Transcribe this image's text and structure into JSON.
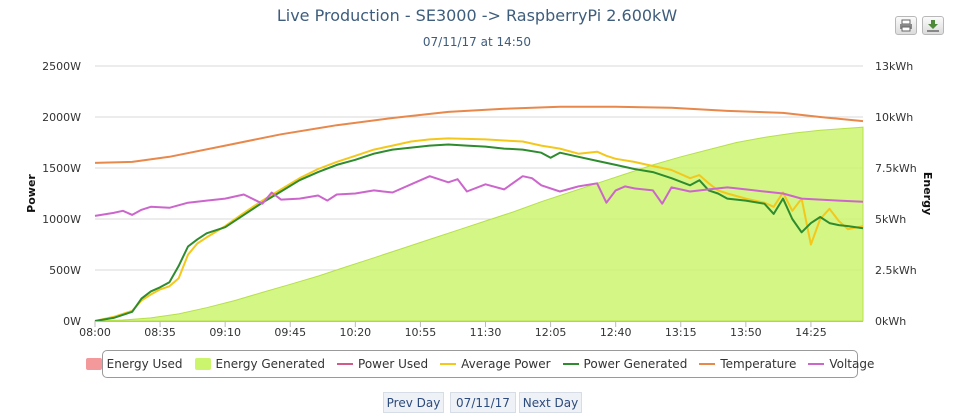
{
  "header": {
    "title": "Live Production - SE3000 -> RaspberryPi 2.600kW",
    "subtitle": "07/11/17 at 14:50"
  },
  "toolbar": {
    "print_icon": "printer-icon",
    "export_icon": "download-icon"
  },
  "colors": {
    "energy_used": "#f4999b",
    "energy_generated": "#ccf56e",
    "power_used": "#d25a8a",
    "average_power": "#f3c81b",
    "power_generated": "#2e8b2e",
    "temperature": "#e8884a",
    "voltage": "#cc66cc"
  },
  "chart_data": {
    "type": "line",
    "x_ticks": [
      "08:00",
      "08:35",
      "09:10",
      "09:45",
      "10:20",
      "10:55",
      "11:30",
      "12:05",
      "12:40",
      "13:15",
      "13:50",
      "14:25"
    ],
    "x_range_min": [
      480,
      893
    ],
    "left_axis": {
      "label": "Power",
      "ticks": [
        "0W",
        "500W",
        "1000W",
        "1500W",
        "2000W",
        "2500W"
      ],
      "ylim": [
        0,
        2500
      ]
    },
    "right_axis": {
      "label": "Energy",
      "ticks": [
        "0kWh",
        "2.5kWh",
        "5kWh",
        "7.5kWh",
        "10kWh",
        "13kWh"
      ],
      "ylim": [
        0,
        12.5
      ]
    },
    "series": [
      {
        "name": "Energy Used",
        "key": "energy_used",
        "type": "area",
        "values": []
      },
      {
        "name": "Energy Generated",
        "key": "energy_generated",
        "type": "area",
        "axis": "right",
        "x": [
          480,
          495,
          510,
          525,
          540,
          555,
          570,
          585,
          600,
          615,
          630,
          645,
          660,
          675,
          690,
          705,
          720,
          735,
          750,
          765,
          780,
          795,
          810,
          825,
          840,
          855,
          870,
          885,
          893
        ],
        "values": [
          0,
          0.05,
          0.15,
          0.35,
          0.65,
          1.0,
          1.4,
          1.8,
          2.2,
          2.65,
          3.1,
          3.55,
          4.0,
          4.45,
          4.9,
          5.35,
          5.85,
          6.3,
          6.75,
          7.2,
          7.65,
          8.05,
          8.4,
          8.75,
          9.0,
          9.2,
          9.35,
          9.45,
          9.5
        ]
      },
      {
        "name": "Power Used",
        "key": "power_used",
        "type": "line",
        "values": []
      },
      {
        "name": "Average Power",
        "key": "average_power",
        "type": "line",
        "x": [
          480,
          490,
          500,
          505,
          510,
          515,
          520,
          525,
          530,
          535,
          540,
          550,
          560,
          570,
          580,
          590,
          600,
          610,
          620,
          630,
          640,
          650,
          660,
          670,
          680,
          690,
          700,
          710,
          720,
          730,
          740,
          750,
          755,
          760,
          770,
          780,
          790,
          800,
          805,
          810,
          815,
          820,
          830,
          840,
          845,
          850,
          855,
          860,
          865,
          870,
          875,
          880,
          885,
          893
        ],
        "values": [
          0,
          40,
          100,
          200,
          260,
          310,
          340,
          420,
          650,
          760,
          820,
          930,
          1060,
          1180,
          1290,
          1400,
          1490,
          1560,
          1620,
          1680,
          1720,
          1760,
          1780,
          1790,
          1785,
          1780,
          1770,
          1760,
          1720,
          1690,
          1640,
          1660,
          1620,
          1590,
          1560,
          1520,
          1480,
          1400,
          1430,
          1350,
          1280,
          1250,
          1200,
          1160,
          1120,
          1260,
          1080,
          1200,
          750,
          1000,
          1100,
          980,
          900,
          930
        ]
      },
      {
        "name": "Power Generated",
        "key": "power_generated",
        "type": "line",
        "x": [
          480,
          490,
          500,
          505,
          510,
          515,
          520,
          525,
          530,
          535,
          540,
          550,
          560,
          570,
          580,
          590,
          600,
          610,
          620,
          630,
          640,
          650,
          660,
          670,
          680,
          690,
          700,
          710,
          720,
          725,
          730,
          740,
          750,
          760,
          770,
          780,
          790,
          800,
          805,
          810,
          815,
          820,
          830,
          840,
          845,
          850,
          855,
          860,
          865,
          870,
          875,
          880,
          885,
          893
        ],
        "values": [
          0,
          30,
          90,
          220,
          290,
          330,
          380,
          540,
          730,
          800,
          860,
          920,
          1040,
          1160,
          1270,
          1380,
          1460,
          1530,
          1580,
          1640,
          1680,
          1700,
          1720,
          1730,
          1720,
          1710,
          1690,
          1680,
          1650,
          1600,
          1650,
          1610,
          1570,
          1530,
          1490,
          1460,
          1400,
          1330,
          1380,
          1280,
          1250,
          1200,
          1180,
          1150,
          1050,
          1200,
          1000,
          870,
          960,
          1020,
          960,
          940,
          930,
          910
        ]
      },
      {
        "name": "Temperature",
        "key": "temperature",
        "type": "line",
        "x": [
          480,
          500,
          520,
          550,
          580,
          610,
          640,
          670,
          700,
          730,
          760,
          790,
          820,
          850,
          870,
          893
        ],
        "values": [
          1550,
          1560,
          1610,
          1720,
          1830,
          1920,
          1990,
          2050,
          2080,
          2100,
          2100,
          2090,
          2060,
          2040,
          2000,
          1960
        ]
      },
      {
        "name": "Voltage",
        "key": "voltage",
        "type": "line",
        "x": [
          480,
          490,
          495,
          500,
          505,
          510,
          520,
          530,
          540,
          550,
          560,
          570,
          575,
          580,
          590,
          600,
          605,
          610,
          620,
          630,
          640,
          650,
          660,
          670,
          675,
          680,
          690,
          700,
          710,
          715,
          720,
          730,
          740,
          750,
          755,
          760,
          765,
          770,
          780,
          785,
          790,
          800,
          810,
          820,
          830,
          840,
          850,
          860,
          870,
          880,
          893
        ],
        "values": [
          1030,
          1060,
          1080,
          1040,
          1090,
          1120,
          1110,
          1160,
          1180,
          1200,
          1240,
          1150,
          1260,
          1190,
          1200,
          1230,
          1180,
          1240,
          1250,
          1280,
          1260,
          1340,
          1420,
          1360,
          1390,
          1270,
          1340,
          1290,
          1420,
          1400,
          1330,
          1270,
          1320,
          1350,
          1160,
          1280,
          1320,
          1300,
          1280,
          1150,
          1310,
          1270,
          1290,
          1310,
          1290,
          1270,
          1250,
          1200,
          1190,
          1180,
          1170
        ]
      }
    ],
    "legend": {
      "position": "bottom-center"
    }
  },
  "legend_items": [
    {
      "label": "Energy Used"
    },
    {
      "label": "Energy Generated"
    },
    {
      "label": "Power Used"
    },
    {
      "label": "Average Power"
    },
    {
      "label": "Power Generated"
    },
    {
      "label": "Temperature"
    },
    {
      "label": "Voltage"
    }
  ],
  "navigation": {
    "prev_label": "Prev Day",
    "date_label": "07/11/17",
    "next_label": "Next Day"
  }
}
